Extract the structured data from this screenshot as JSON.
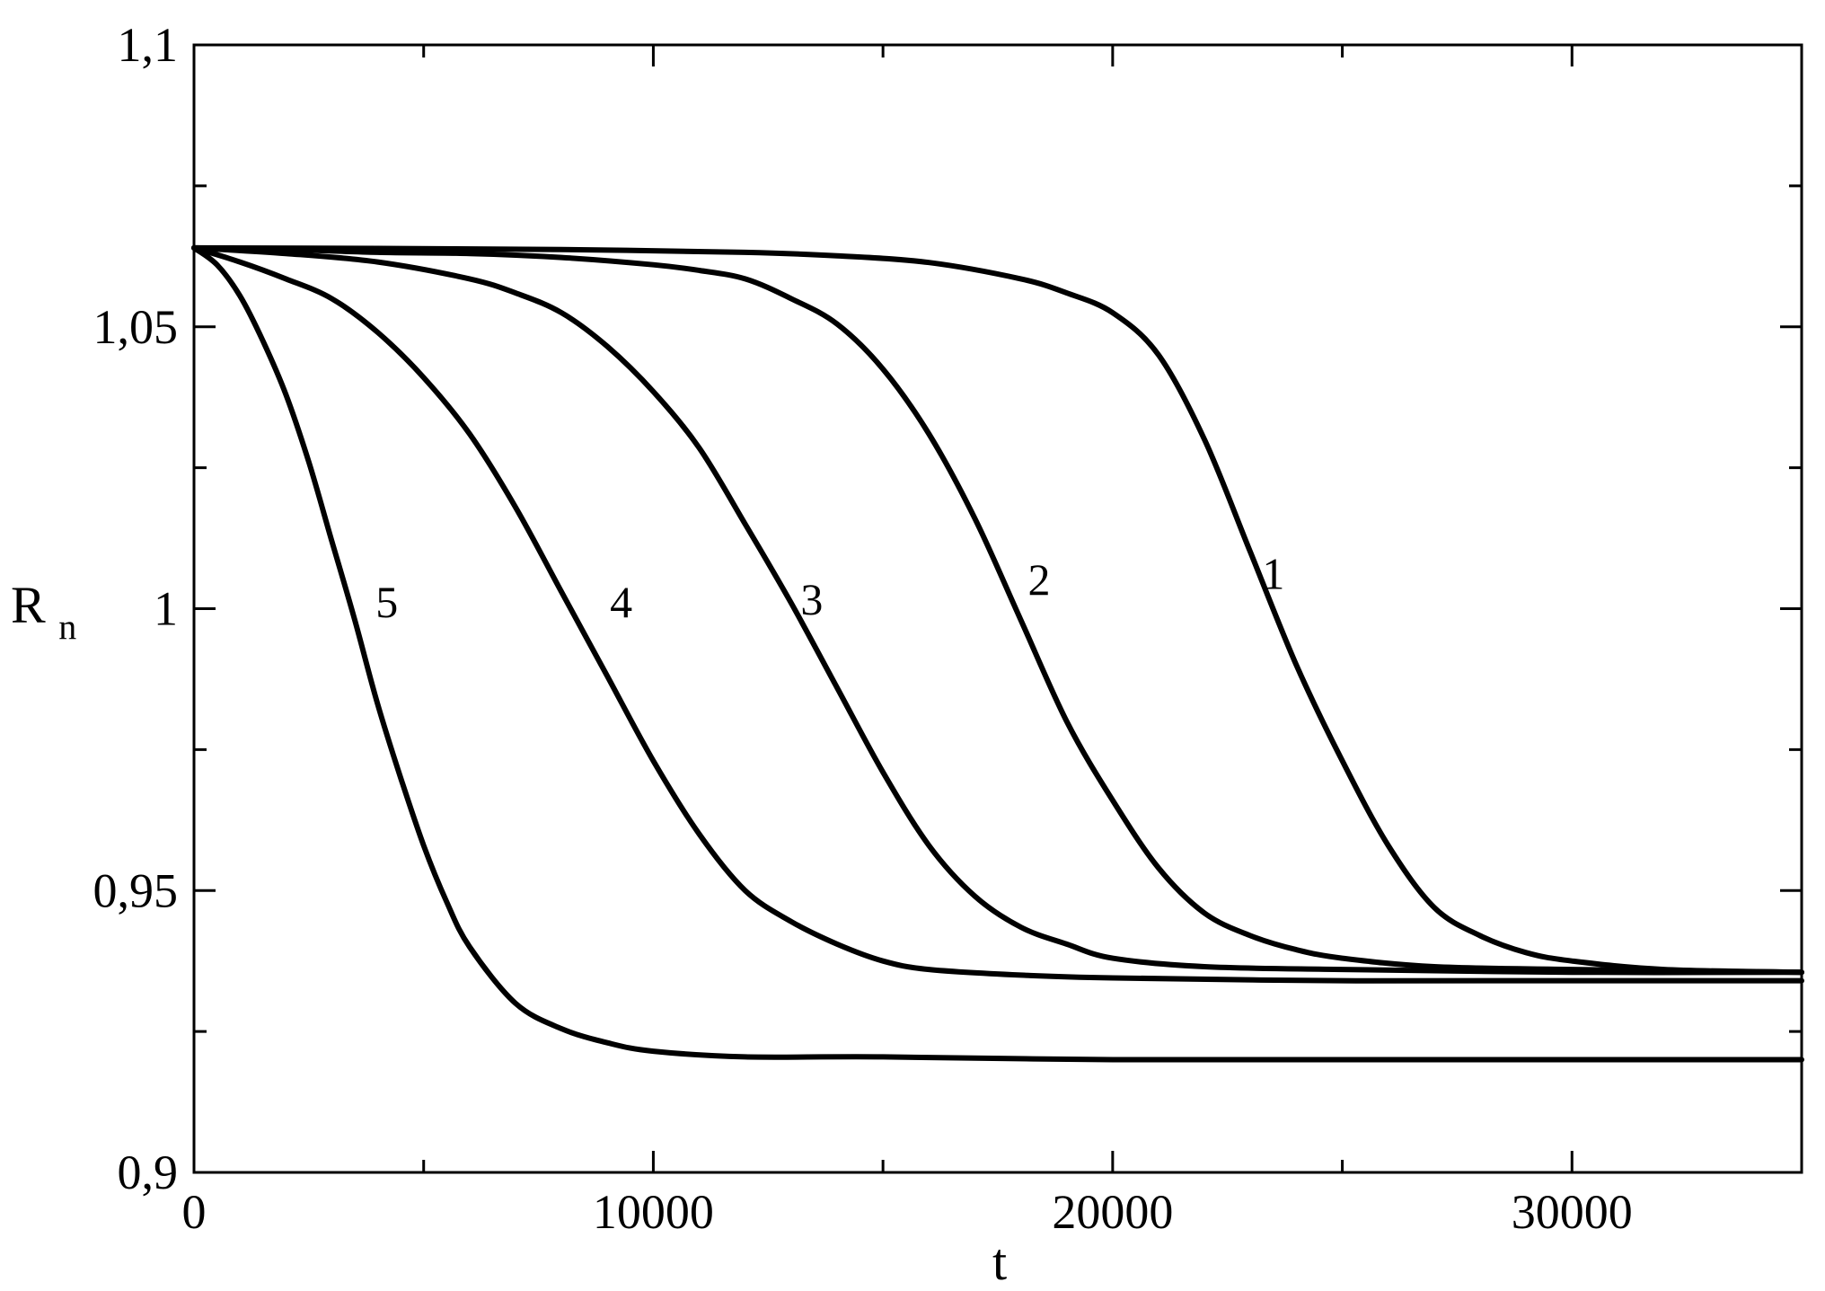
{
  "chart_data": {
    "type": "line",
    "xlabel": "t",
    "ylabel": {
      "main": "R",
      "sub": "n"
    },
    "xlim": [
      0,
      35000
    ],
    "ylim": [
      0.9,
      1.1
    ],
    "x_ticks": [
      {
        "value": 0,
        "label": "0"
      },
      {
        "value": 10000,
        "label": "10000"
      },
      {
        "value": 20000,
        "label": "20000"
      },
      {
        "value": 30000,
        "label": "30000"
      }
    ],
    "x_minor_ticks": [
      5000,
      15000,
      25000
    ],
    "y_ticks": [
      {
        "value": 0.9,
        "label": "0,9"
      },
      {
        "value": 0.95,
        "label": "0,95"
      },
      {
        "value": 1.0,
        "label": "1"
      },
      {
        "value": 1.05,
        "label": "1,05"
      },
      {
        "value": 1.1,
        "label": "1,1"
      }
    ],
    "y_minor_ticks": [
      0.925,
      0.975,
      1.025,
      1.075
    ],
    "grid": false,
    "legend": "none",
    "series": [
      {
        "label": "1",
        "label_point": [
          23500,
          1.0035
        ],
        "points": [
          [
            0,
            1.064
          ],
          [
            4000,
            1.0639
          ],
          [
            8000,
            1.0637
          ],
          [
            12000,
            1.0632
          ],
          [
            14000,
            1.0626
          ],
          [
            16000,
            1.0614
          ],
          [
            18000,
            1.0585
          ],
          [
            19000,
            1.056
          ],
          [
            20000,
            1.0525
          ],
          [
            21000,
            1.045
          ],
          [
            22000,
            1.03
          ],
          [
            23000,
            1.01
          ],
          [
            24000,
            0.99
          ],
          [
            25000,
            0.973
          ],
          [
            26000,
            0.958
          ],
          [
            27000,
            0.947
          ],
          [
            28000,
            0.942
          ],
          [
            29000,
            0.939
          ],
          [
            30000,
            0.9375
          ],
          [
            32000,
            0.936
          ],
          [
            35000,
            0.9355
          ]
        ]
      },
      {
        "label": "2",
        "label_point": [
          18400,
          1.0025
        ],
        "points": [
          [
            0,
            1.064
          ],
          [
            2000,
            1.0637
          ],
          [
            4000,
            1.0632
          ],
          [
            6000,
            1.063
          ],
          [
            8000,
            1.0623
          ],
          [
            10000,
            1.061
          ],
          [
            11000,
            1.06
          ],
          [
            12000,
            1.0585
          ],
          [
            13000,
            1.055
          ],
          [
            14000,
            1.0505
          ],
          [
            15000,
            1.0425
          ],
          [
            16000,
            1.031
          ],
          [
            17000,
            1.016
          ],
          [
            18000,
            0.998
          ],
          [
            19000,
            0.98
          ],
          [
            20000,
            0.966
          ],
          [
            21000,
            0.954
          ],
          [
            22000,
            0.946
          ],
          [
            23000,
            0.942
          ],
          [
            24000,
            0.9395
          ],
          [
            25000,
            0.938
          ],
          [
            27000,
            0.9365
          ],
          [
            30000,
            0.936
          ],
          [
            35000,
            0.9355
          ]
        ]
      },
      {
        "label": "3",
        "label_point": [
          13450,
          0.999
        ],
        "points": [
          [
            0,
            1.064
          ],
          [
            2000,
            1.063
          ],
          [
            4000,
            1.0615
          ],
          [
            6000,
            1.0585
          ],
          [
            7000,
            1.056
          ],
          [
            8000,
            1.0525
          ],
          [
            9000,
            1.0465
          ],
          [
            10000,
            1.0385
          ],
          [
            11000,
            1.0285
          ],
          [
            12000,
            1.015
          ],
          [
            13000,
            1.001
          ],
          [
            14000,
            0.986
          ],
          [
            15000,
            0.971
          ],
          [
            16000,
            0.958
          ],
          [
            17000,
            0.949
          ],
          [
            18000,
            0.9435
          ],
          [
            19000,
            0.9405
          ],
          [
            20000,
            0.938
          ],
          [
            22000,
            0.9365
          ],
          [
            25000,
            0.936
          ],
          [
            30000,
            0.9355
          ],
          [
            35000,
            0.9355
          ]
        ]
      },
      {
        "label": "4",
        "label_point": [
          9300,
          0.9985
        ],
        "points": [
          [
            0,
            1.064
          ],
          [
            1000,
            1.0615
          ],
          [
            2000,
            1.0585
          ],
          [
            3000,
            1.055
          ],
          [
            4000,
            1.049
          ],
          [
            5000,
            1.041
          ],
          [
            6000,
            1.031
          ],
          [
            7000,
            1.018
          ],
          [
            8000,
            1.003
          ],
          [
            9000,
            0.988
          ],
          [
            10000,
            0.973
          ],
          [
            11000,
            0.96
          ],
          [
            12000,
            0.95
          ],
          [
            13000,
            0.9445
          ],
          [
            14000,
            0.9405
          ],
          [
            15000,
            0.9375
          ],
          [
            16000,
            0.936
          ],
          [
            18000,
            0.935
          ],
          [
            20000,
            0.9345
          ],
          [
            25000,
            0.934
          ],
          [
            30000,
            0.934
          ],
          [
            35000,
            0.934
          ]
        ]
      },
      {
        "label": "5",
        "label_point": [
          4200,
          0.9985
        ],
        "points": [
          [
            0,
            1.064
          ],
          [
            500,
            1.061
          ],
          [
            1000,
            1.0555
          ],
          [
            1500,
            1.0475
          ],
          [
            2000,
            1.038
          ],
          [
            2500,
            1.026
          ],
          [
            3000,
            1.012
          ],
          [
            3500,
            0.998
          ],
          [
            4000,
            0.983
          ],
          [
            4500,
            0.97
          ],
          [
            5000,
            0.958
          ],
          [
            5500,
            0.948
          ],
          [
            6000,
            0.94
          ],
          [
            7000,
            0.93
          ],
          [
            8000,
            0.9255
          ],
          [
            9000,
            0.923
          ],
          [
            10000,
            0.9215
          ],
          [
            12000,
            0.9205
          ],
          [
            15000,
            0.9205
          ],
          [
            20000,
            0.92
          ],
          [
            25000,
            0.92
          ],
          [
            30000,
            0.92
          ],
          [
            35000,
            0.92
          ]
        ]
      }
    ]
  }
}
